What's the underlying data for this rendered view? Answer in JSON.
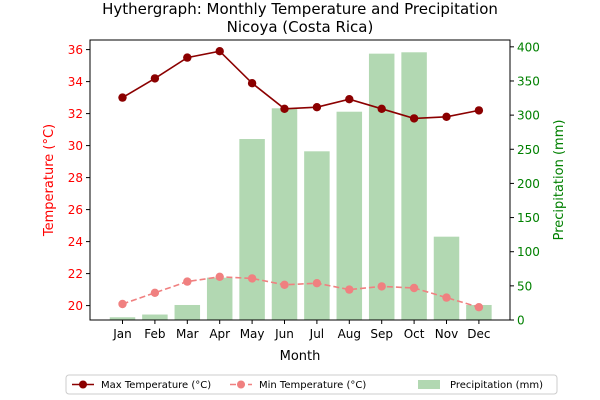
{
  "chart_data": {
    "type": "line+bar",
    "title": "Hythergraph: Monthly Temperature and Precipitation",
    "subtitle": "Nicoya (Costa Rica)",
    "xlabel": "Month",
    "ylabel_left": "Temperature (°C)",
    "ylabel_right": "Precipitation (mm)",
    "categories": [
      "Jan",
      "Feb",
      "Mar",
      "Apr",
      "May",
      "Jun",
      "Jul",
      "Aug",
      "Sep",
      "Oct",
      "Nov",
      "Dec"
    ],
    "ylim_left": [
      19.1,
      36.6
    ],
    "ylim_right": [
      0,
      410
    ],
    "yticks_left": [
      20,
      22,
      24,
      26,
      28,
      30,
      32,
      34,
      36
    ],
    "yticks_right": [
      0,
      50,
      100,
      150,
      200,
      250,
      300,
      350,
      400
    ],
    "series": [
      {
        "name": "Max Temperature (°C)",
        "axis": "left",
        "type": "line",
        "color": "#8b0000",
        "style": "solid",
        "values": [
          33.0,
          34.2,
          35.5,
          35.9,
          33.9,
          32.3,
          32.4,
          32.9,
          32.3,
          31.7,
          31.8,
          32.2
        ]
      },
      {
        "name": "Min Temperature (°C)",
        "axis": "left",
        "type": "line",
        "color": "#f08080",
        "style": "dashed",
        "values": [
          20.1,
          20.8,
          21.5,
          21.8,
          21.7,
          21.3,
          21.4,
          21.0,
          21.2,
          21.1,
          20.5,
          19.9
        ]
      },
      {
        "name": "Precipitation (mm)",
        "axis": "right",
        "type": "bar",
        "color": "#b2d8b2",
        "values": [
          4,
          8,
          22,
          62,
          265,
          310,
          247,
          305,
          390,
          392,
          122,
          22
        ]
      }
    ],
    "legend_position": "bottom",
    "left_axis_color": "#ff0000",
    "right_axis_color": "#008000"
  }
}
